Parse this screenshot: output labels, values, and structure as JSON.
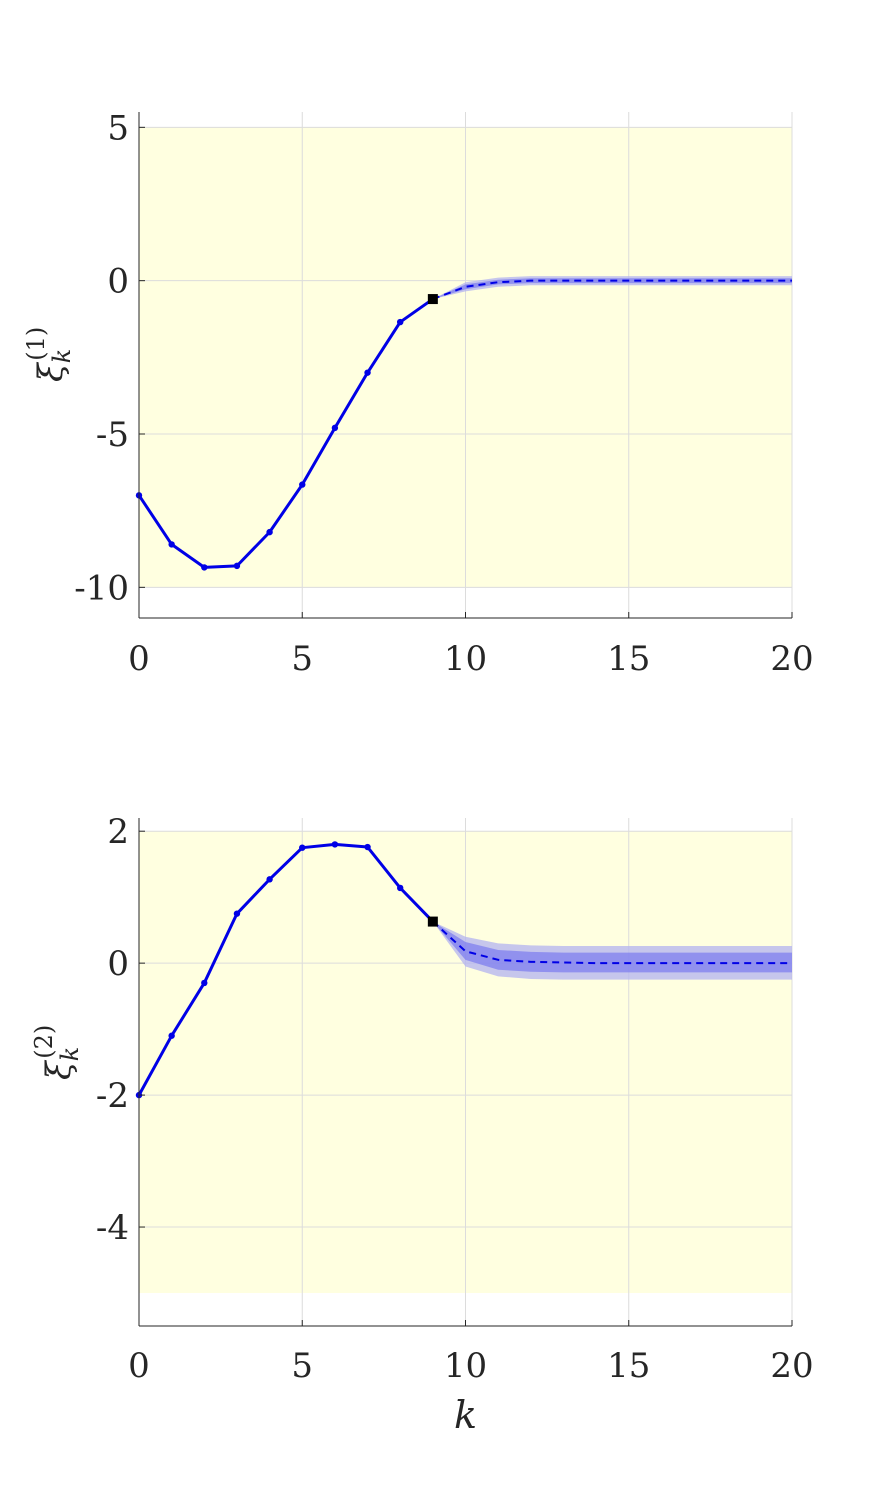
{
  "colors": {
    "feasible_region": "#ffffe0",
    "trajectory": "#0000e6",
    "prediction_band_outer": "#b3b3f0",
    "prediction_band_inner": "#7a7aef",
    "current_marker": "#000000",
    "grid": "#dcdcdc",
    "axis": "#262626"
  },
  "chart_data": [
    {
      "type": "line",
      "ylabel": "ξ",
      "ylabel_subscript": "k",
      "ylabel_superscript": "(1)",
      "xlim": [
        0,
        20
      ],
      "ylim": [
        -11,
        5.5
      ],
      "xticks": [
        0,
        5,
        10,
        15,
        20
      ],
      "xtick_labels": [
        "0",
        "5",
        "10",
        "15",
        "20"
      ],
      "yticks": [
        5,
        0,
        -5,
        -10
      ],
      "ytick_labels": [
        "5",
        "0",
        "-5",
        "-10"
      ],
      "grid": true,
      "feasible_region": {
        "x": [
          0,
          20
        ],
        "y": [
          -10,
          5
        ]
      },
      "series": [
        {
          "role": "measured",
          "x": [
            0,
            1,
            2,
            3,
            4,
            5,
            6,
            7,
            8,
            9
          ],
          "values": [
            -7.0,
            -8.6,
            -9.35,
            -9.3,
            -8.2,
            -6.65,
            -4.8,
            -3.0,
            -1.35,
            -0.6
          ]
        },
        {
          "role": "prediction-mean",
          "x": [
            9,
            10,
            11,
            12,
            13,
            14,
            15,
            16,
            17,
            18,
            19,
            20
          ],
          "values": [
            -0.6,
            -0.2,
            -0.05,
            0,
            0,
            0,
            0,
            0,
            0,
            0,
            0,
            0
          ],
          "band_outer": {
            "lower": [
              -0.6,
              -0.35,
              -0.2,
              -0.15,
              -0.15,
              -0.15,
              -0.15,
              -0.15,
              -0.15,
              -0.15,
              -0.15,
              -0.15
            ],
            "upper": [
              -0.6,
              -0.05,
              0.1,
              0.15,
              0.15,
              0.15,
              0.15,
              0.15,
              0.15,
              0.15,
              0.15,
              0.15
            ]
          },
          "band_inner": {
            "lower": [
              -0.6,
              -0.28,
              -0.12,
              -0.08,
              -0.08,
              -0.08,
              -0.08,
              -0.08,
              -0.08,
              -0.08,
              -0.08,
              -0.08
            ],
            "upper": [
              -0.6,
              -0.12,
              0.03,
              0.08,
              0.08,
              0.08,
              0.08,
              0.08,
              0.08,
              0.08,
              0.08,
              0.08
            ]
          }
        }
      ],
      "current_point": {
        "x": 9,
        "y": -0.6
      }
    },
    {
      "type": "line",
      "ylabel": "ξ",
      "ylabel_subscript": "k",
      "ylabel_superscript": "(2)",
      "xlabel": "k",
      "xlim": [
        0,
        20
      ],
      "ylim": [
        -5.5,
        2.2
      ],
      "xticks": [
        0,
        5,
        10,
        15,
        20
      ],
      "xtick_labels": [
        "0",
        "5",
        "10",
        "15",
        "20"
      ],
      "yticks": [
        2,
        0,
        -2,
        -4
      ],
      "ytick_labels": [
        "2",
        "0",
        "-2",
        "-4"
      ],
      "grid": true,
      "feasible_region": {
        "x": [
          0,
          20
        ],
        "y": [
          -5,
          2
        ]
      },
      "series": [
        {
          "role": "measured",
          "x": [
            0,
            1,
            2,
            3,
            4,
            5,
            6,
            7,
            8,
            9
          ],
          "values": [
            -2.0,
            -1.1,
            -0.3,
            0.75,
            1.27,
            1.75,
            1.8,
            1.76,
            1.14,
            0.63
          ]
        },
        {
          "role": "prediction-mean",
          "x": [
            9,
            10,
            11,
            12,
            13,
            14,
            15,
            16,
            17,
            18,
            19,
            20
          ],
          "values": [
            0.63,
            0.18,
            0.05,
            0.02,
            0.01,
            0,
            0,
            0,
            0,
            0,
            0,
            0
          ],
          "band_outer": {
            "lower": [
              0.63,
              -0.05,
              -0.2,
              -0.24,
              -0.25,
              -0.25,
              -0.25,
              -0.25,
              -0.25,
              -0.25,
              -0.25,
              -0.25
            ],
            "upper": [
              0.63,
              0.4,
              0.3,
              0.27,
              0.26,
              0.26,
              0.26,
              0.26,
              0.26,
              0.26,
              0.26,
              0.26
            ]
          },
          "band_inner": {
            "lower": [
              0.63,
              0.05,
              -0.1,
              -0.13,
              -0.14,
              -0.14,
              -0.14,
              -0.14,
              -0.14,
              -0.14,
              -0.14,
              -0.14
            ],
            "upper": [
              0.63,
              0.32,
              0.2,
              0.17,
              0.16,
              0.16,
              0.16,
              0.16,
              0.16,
              0.16,
              0.16,
              0.16
            ]
          }
        }
      ],
      "current_point": {
        "x": 9,
        "y": 0.63
      }
    }
  ]
}
